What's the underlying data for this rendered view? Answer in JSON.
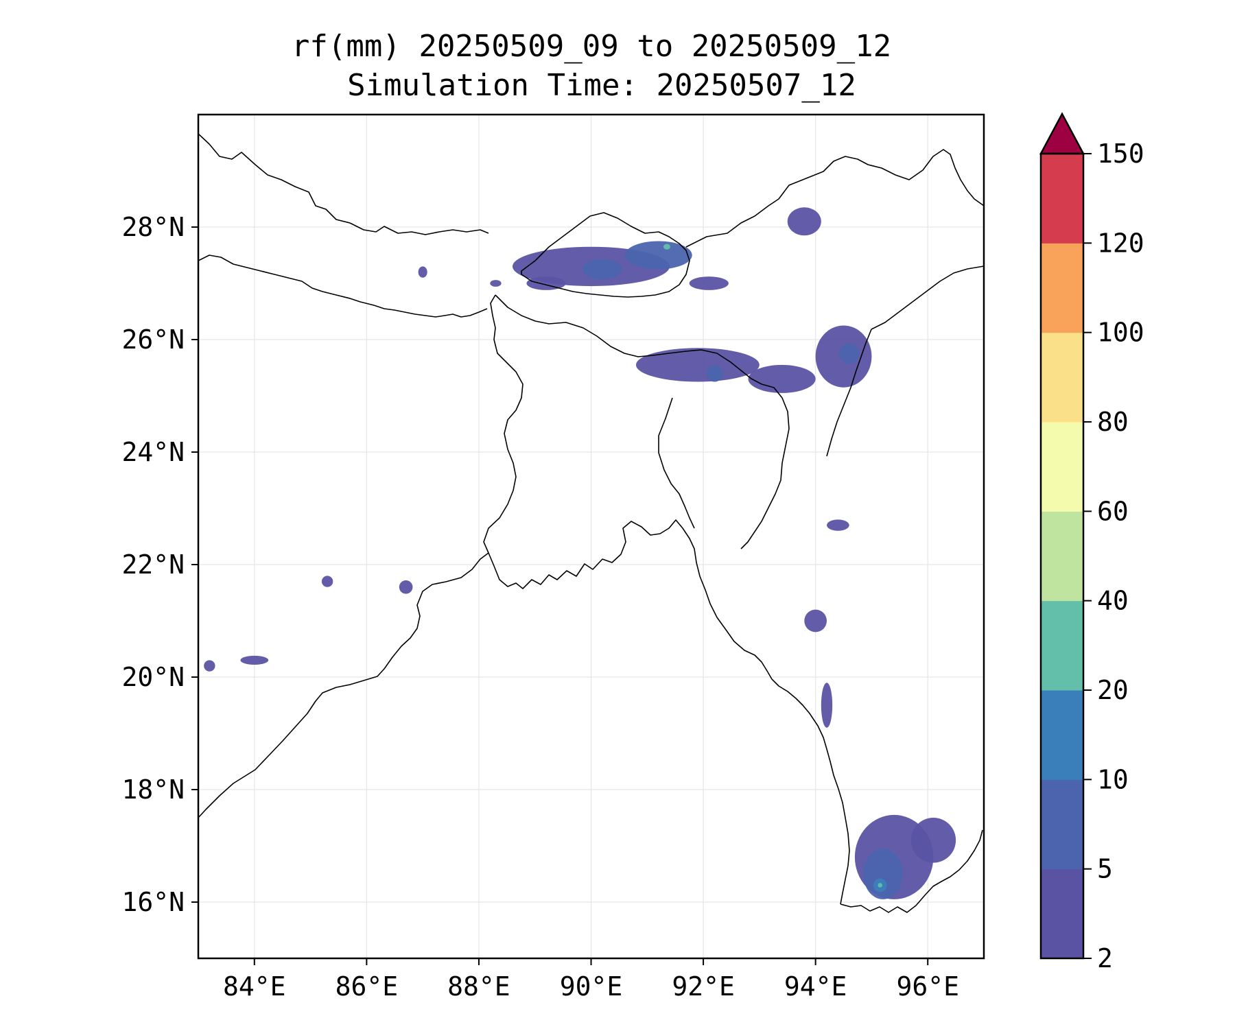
{
  "title": {
    "line1": "rf(mm) 20250509_09 to 20250509_12",
    "line2": "Simulation Time: 20250507_12"
  },
  "map": {
    "lon_range": [
      83.0,
      97.0
    ],
    "lat_range": [
      15.0,
      30.0
    ],
    "grid": true,
    "x_ticks": [
      {
        "lon": 84,
        "label": "84°E"
      },
      {
        "lon": 86,
        "label": "86°E"
      },
      {
        "lon": 88,
        "label": "88°E"
      },
      {
        "lon": 90,
        "label": "90°E"
      },
      {
        "lon": 92,
        "label": "92°E"
      },
      {
        "lon": 94,
        "label": "94°E"
      },
      {
        "lon": 96,
        "label": "96°E"
      }
    ],
    "y_ticks": [
      {
        "lat": 16,
        "label": "16°N"
      },
      {
        "lat": 18,
        "label": "18°N"
      },
      {
        "lat": 20,
        "label": "20°N"
      },
      {
        "lat": 22,
        "label": "22°N"
      },
      {
        "lat": 24,
        "label": "24°N"
      },
      {
        "lat": 26,
        "label": "26°N"
      },
      {
        "lat": 28,
        "label": "28°N"
      }
    ],
    "coastline_color": "#000000",
    "rain_cells": [
      {
        "lon": 90.0,
        "lat": 27.3,
        "rx": 1.4,
        "ry": 0.35,
        "level": 0
      },
      {
        "lon": 90.2,
        "lat": 27.25,
        "rx": 0.35,
        "ry": 0.18,
        "level": 1
      },
      {
        "lon": 91.2,
        "lat": 27.5,
        "rx": 0.6,
        "ry": 0.25,
        "level": 1
      },
      {
        "lon": 91.35,
        "lat": 27.65,
        "rx": 0.06,
        "ry": 0.05,
        "level": 3
      },
      {
        "lon": 89.2,
        "lat": 27.0,
        "rx": 0.35,
        "ry": 0.12,
        "level": 0
      },
      {
        "lon": 92.1,
        "lat": 27.0,
        "rx": 0.35,
        "ry": 0.12,
        "level": 0
      },
      {
        "lon": 93.8,
        "lat": 28.1,
        "rx": 0.3,
        "ry": 0.25,
        "level": 0
      },
      {
        "lon": 91.9,
        "lat": 25.55,
        "rx": 1.1,
        "ry": 0.3,
        "level": 0
      },
      {
        "lon": 92.2,
        "lat": 25.4,
        "rx": 0.15,
        "ry": 0.15,
        "level": 1
      },
      {
        "lon": 93.4,
        "lat": 25.3,
        "rx": 0.6,
        "ry": 0.25,
        "level": 0
      },
      {
        "lon": 94.5,
        "lat": 25.7,
        "rx": 0.5,
        "ry": 0.55,
        "level": 0
      },
      {
        "lon": 94.6,
        "lat": 25.75,
        "rx": 0.18,
        "ry": 0.18,
        "level": 1
      },
      {
        "lon": 94.4,
        "lat": 22.7,
        "rx": 0.2,
        "ry": 0.1,
        "level": 0
      },
      {
        "lon": 94.0,
        "lat": 21.0,
        "rx": 0.2,
        "ry": 0.2,
        "level": 0
      },
      {
        "lon": 94.2,
        "lat": 19.5,
        "rx": 0.1,
        "ry": 0.4,
        "level": 0
      },
      {
        "lon": 95.4,
        "lat": 16.8,
        "rx": 0.7,
        "ry": 0.75,
        "level": 0
      },
      {
        "lon": 95.2,
        "lat": 16.5,
        "rx": 0.35,
        "ry": 0.45,
        "level": 1
      },
      {
        "lon": 95.15,
        "lat": 16.3,
        "rx": 0.12,
        "ry": 0.12,
        "level": 2
      },
      {
        "lon": 95.15,
        "lat": 16.3,
        "rx": 0.04,
        "ry": 0.04,
        "level": 3
      },
      {
        "lon": 96.1,
        "lat": 17.1,
        "rx": 0.4,
        "ry": 0.4,
        "level": 0
      },
      {
        "lon": 84.0,
        "lat": 20.3,
        "rx": 0.25,
        "ry": 0.08,
        "level": 0
      },
      {
        "lon": 83.2,
        "lat": 20.2,
        "rx": 0.1,
        "ry": 0.1,
        "level": 0
      },
      {
        "lon": 85.3,
        "lat": 21.7,
        "rx": 0.1,
        "ry": 0.1,
        "level": 0
      },
      {
        "lon": 86.7,
        "lat": 21.6,
        "rx": 0.12,
        "ry": 0.12,
        "level": 0
      },
      {
        "lon": 88.3,
        "lat": 27.0,
        "rx": 0.1,
        "ry": 0.06,
        "level": 0
      },
      {
        "lon": 87.0,
        "lat": 27.2,
        "rx": 0.08,
        "ry": 0.1,
        "level": 0
      }
    ]
  },
  "colorbar": {
    "levels": [
      "2",
      "5",
      "10",
      "20",
      "40",
      "60",
      "80",
      "100",
      "120",
      "150"
    ],
    "colors": [
      "#5a53a4",
      "#4b64ad",
      "#3a7fba",
      "#63bfaa",
      "#bfe4a0",
      "#f4fbad",
      "#fbe08a",
      "#f9a25a",
      "#d53d4f"
    ],
    "extend_color": "#9e0142"
  }
}
